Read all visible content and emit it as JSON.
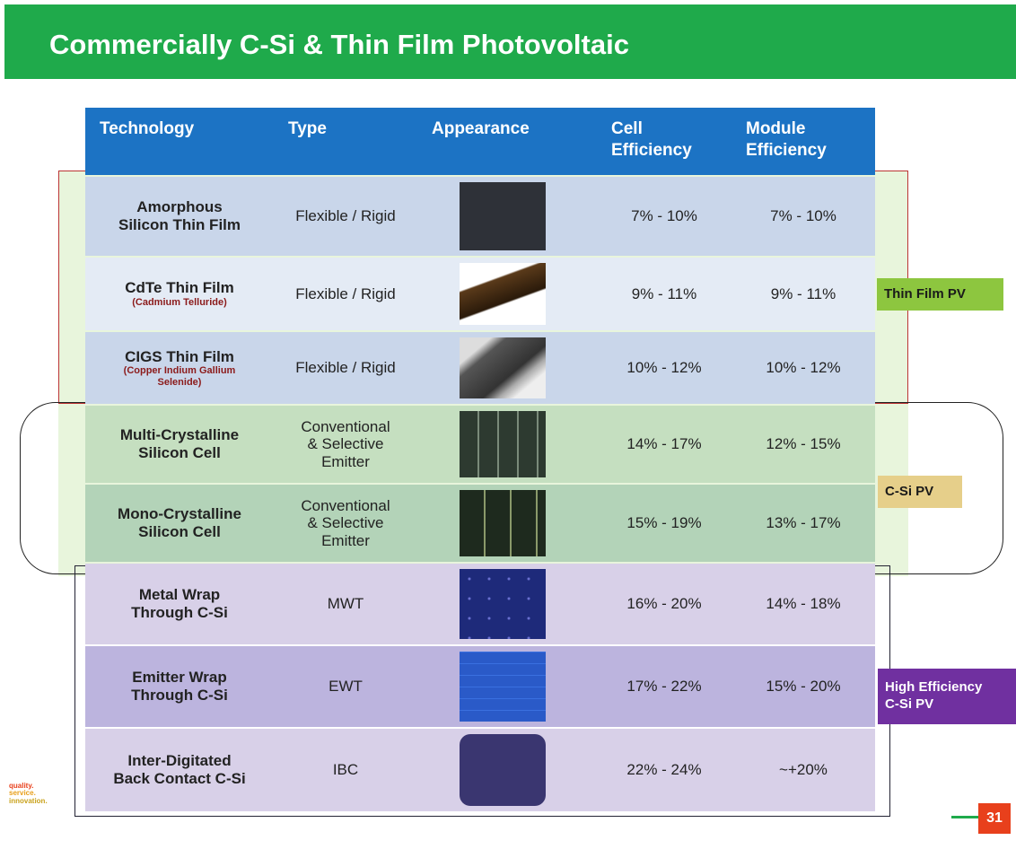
{
  "header": {
    "title": "Commercially C-Si & Thin Film Photovoltaic"
  },
  "table": {
    "columns": [
      [
        "Technology"
      ],
      [
        "Type"
      ],
      [
        "Appearance"
      ],
      [
        "Cell",
        "Efficiency"
      ],
      [
        "Module",
        "Efficiency"
      ]
    ],
    "rows": [
      {
        "technology": [
          "Amorphous",
          "Silicon Thin Film"
        ],
        "type": [
          "Flexible / Rigid"
        ],
        "cell_efficiency": "7% - 10%",
        "module_efficiency": "7% - 10%"
      },
      {
        "technology": [
          "CdTe Thin Film"
        ],
        "note": [
          "(Cadmium Telluride)"
        ],
        "type": [
          "Flexible / Rigid"
        ],
        "cell_efficiency": "9% - 11%",
        "module_efficiency": "9% - 11%"
      },
      {
        "technology": [
          "CIGS Thin Film"
        ],
        "note": [
          "(Copper Indium Gallium",
          "Selenide)"
        ],
        "type": [
          "Flexible / Rigid"
        ],
        "cell_efficiency": "10% - 12%",
        "module_efficiency": "10% - 12%"
      },
      {
        "technology": [
          "Multi-Crystalline",
          "Silicon Cell"
        ],
        "type": [
          "Conventional",
          "& Selective",
          "Emitter"
        ],
        "cell_efficiency": "14% - 17%",
        "module_efficiency": "12% - 15%"
      },
      {
        "technology": [
          "Mono-Crystalline",
          "Silicon Cell"
        ],
        "type": [
          "Conventional",
          "& Selective",
          "Emitter"
        ],
        "cell_efficiency": "15% - 19%",
        "module_efficiency": "13% - 17%"
      },
      {
        "technology": [
          "Metal Wrap",
          "Through C-Si"
        ],
        "type": [
          "MWT"
        ],
        "cell_efficiency": "16% - 20%",
        "module_efficiency": "14% - 18%"
      },
      {
        "technology": [
          "Emitter Wrap",
          "Through C-Si"
        ],
        "type": [
          "EWT"
        ],
        "cell_efficiency": "17% - 22%",
        "module_efficiency": "15% - 20%"
      },
      {
        "technology": [
          "Inter-Digitated",
          "Back Contact C-Si"
        ],
        "type": [
          "IBC"
        ],
        "cell_efficiency": "22% - 24%",
        "module_efficiency": "~+20%"
      }
    ]
  },
  "groups": [
    {
      "label": [
        "Thin Film PV"
      ]
    },
    {
      "label": [
        "C-Si PV"
      ]
    },
    {
      "label": [
        "High Efficiency",
        "C-Si PV"
      ]
    }
  ],
  "footer": {
    "logo": [
      "quality.",
      "service.",
      "innovation."
    ],
    "page_number": "31"
  }
}
